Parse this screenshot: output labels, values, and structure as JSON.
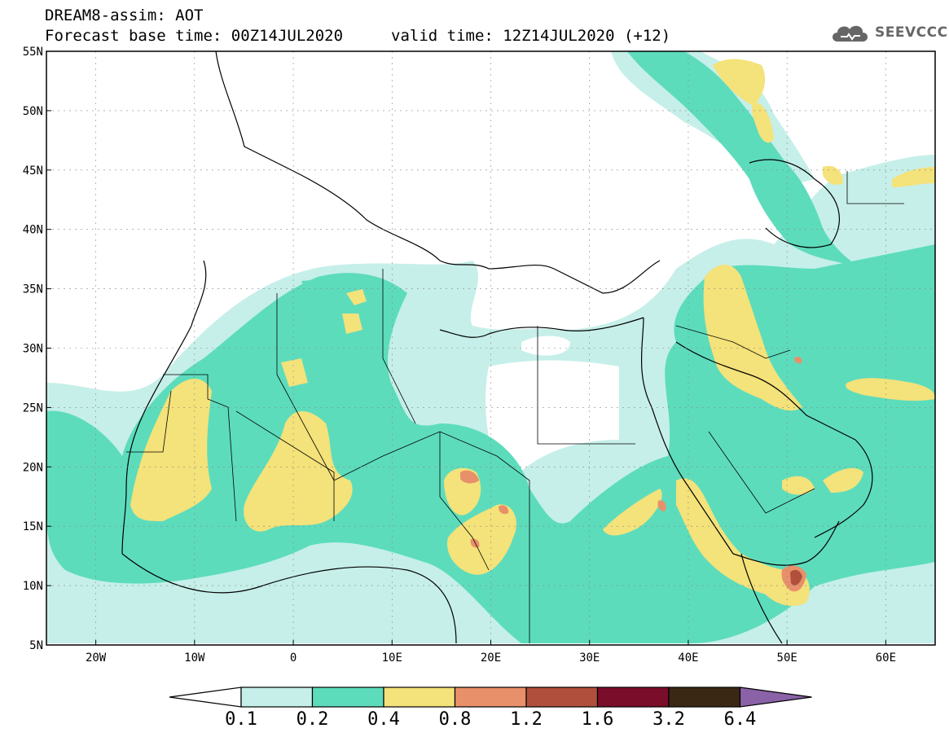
{
  "header": {
    "title_line1": "DREAM8-assim: AOT",
    "forecast_base": "Forecast base time: 00Z14JUL2020",
    "valid_time": "valid time: 12Z14JUL2020 (+12)",
    "logo_text": "SEEVCCC"
  },
  "map": {
    "lon_range": [
      -25,
      65
    ],
    "lat_range": [
      5,
      55
    ],
    "lat_ticks": [
      "55N",
      "50N",
      "45N",
      "40N",
      "35N",
      "30N",
      "25N",
      "20N",
      "15N",
      "10N",
      "5N"
    ],
    "lon_ticks": [
      "20W",
      "10W",
      "0",
      "10E",
      "20E",
      "30E",
      "40E",
      "50E",
      "60E"
    ]
  },
  "colorbar": {
    "levels": [
      "0.1",
      "0.2",
      "0.4",
      "0.8",
      "1.2",
      "1.6",
      "3.2",
      "6.4"
    ],
    "colors": [
      "#ffffff",
      "#c6efe9",
      "#5ddcbc",
      "#f4e27a",
      "#e8906a",
      "#b0503c",
      "#7a0d2a",
      "#3a2815",
      "#8a62a8"
    ]
  }
}
